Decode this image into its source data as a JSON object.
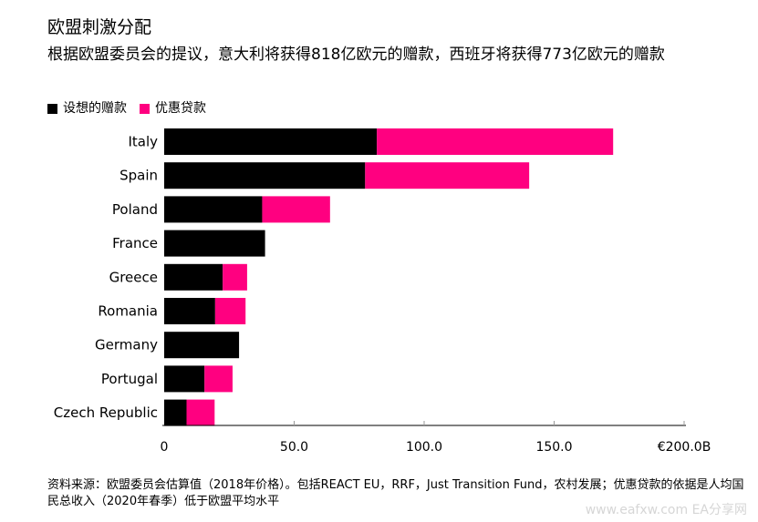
{
  "title": "欧盟刺激分配",
  "subtitle": "根据欧盟委员会的提议，意大利将获得818亿欧元的赠款，西班牙将获得773亿欧元的赠款",
  "source": "资料来源：欧盟委员会估算值（2018年价格）。包括REACT EU，RRF，Just Transition Fund，农村发展；优惠贷款的依据是人均国民总收入（2020年春季）低于欧盟平均水平",
  "watermark": "www.eafxw.com  EA分享网",
  "colors": {
    "grants": "#000000",
    "loans": "#ff0080",
    "axis": "#000000",
    "tick": "#999999"
  },
  "chart_data": {
    "type": "bar",
    "orientation": "horizontal",
    "stacked": true,
    "categories": [
      "Italy",
      "Spain",
      "Poland",
      "France",
      "Greece",
      "Romania",
      "Germany",
      "Portugal",
      "Czech Republic"
    ],
    "series": [
      {
        "name": "设想的赠款",
        "color": "#000000",
        "values": [
          81.8,
          77.3,
          37.7,
          38.8,
          22.5,
          19.6,
          28.8,
          15.5,
          8.6
        ]
      },
      {
        "name": "优惠贷款",
        "color": "#ff0080",
        "values": [
          90.9,
          63.1,
          26.1,
          0,
          9.4,
          11.7,
          0,
          10.8,
          10.8
        ]
      }
    ],
    "xlim": [
      0,
      200
    ],
    "x_ticks": [
      0,
      50,
      100,
      150,
      200
    ],
    "x_tick_labels": [
      "0",
      "50.0",
      "100.0",
      "150.0",
      "€200.0B"
    ],
    "legend_position": "top-left",
    "grid": false
  }
}
